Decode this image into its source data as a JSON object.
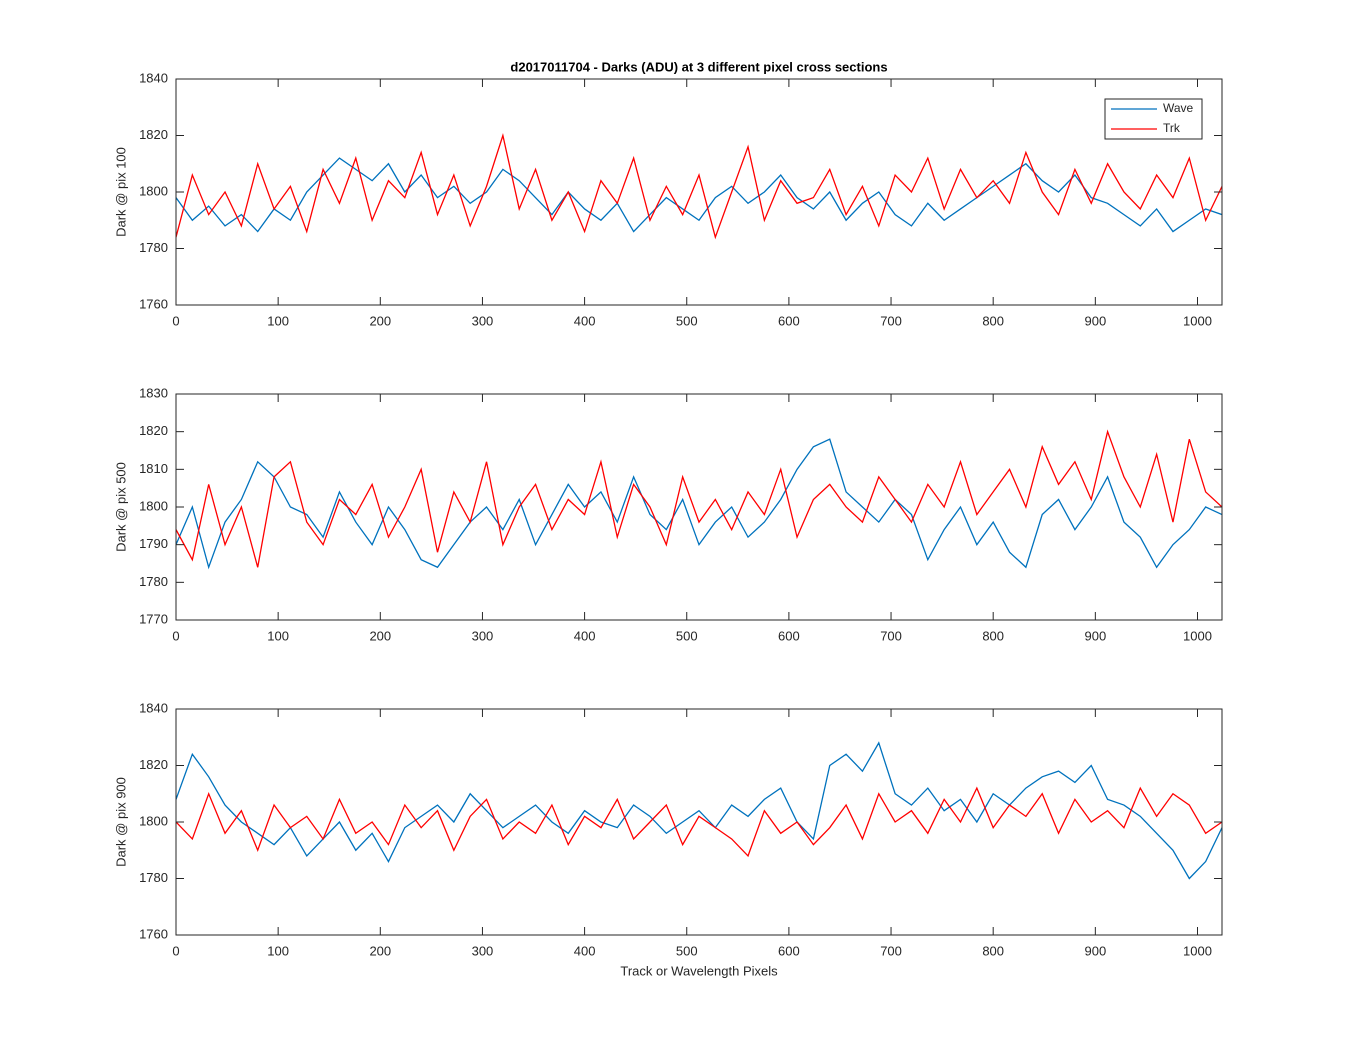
{
  "chart_data": [
    {
      "type": "line",
      "title": "d2017011704 - Darks (ADU) at 3 different pixel cross sections",
      "ylabel": "Dark @ pix 100",
      "x": [
        0,
        16,
        32,
        48,
        64,
        80,
        96,
        112,
        128,
        144,
        160,
        176,
        192,
        208,
        224,
        240,
        256,
        272,
        288,
        304,
        320,
        336,
        352,
        368,
        384,
        400,
        416,
        432,
        448,
        464,
        480,
        496,
        512,
        528,
        544,
        560,
        576,
        592,
        608,
        624,
        640,
        656,
        672,
        688,
        704,
        720,
        736,
        752,
        768,
        784,
        800,
        816,
        832,
        848,
        864,
        880,
        896,
        912,
        928,
        944,
        960,
        976,
        992,
        1008,
        1024
      ],
      "series": [
        {
          "name": "Wave",
          "color": "#0072bd",
          "values": [
            1798,
            1790,
            1795,
            1788,
            1792,
            1786,
            1794,
            1790,
            1800,
            1806,
            1812,
            1808,
            1804,
            1810,
            1800,
            1806,
            1798,
            1802,
            1796,
            1800,
            1808,
            1804,
            1798,
            1792,
            1800,
            1794,
            1790,
            1796,
            1786,
            1792,
            1798,
            1794,
            1790,
            1798,
            1802,
            1796,
            1800,
            1806,
            1798,
            1794,
            1800,
            1790,
            1796,
            1800,
            1792,
            1788,
            1796,
            1790,
            1794,
            1798,
            1802,
            1806,
            1810,
            1804,
            1800,
            1806,
            1798,
            1796,
            1792,
            1788,
            1794,
            1786,
            1790,
            1794,
            1792
          ]
        },
        {
          "name": "Trk",
          "color": "#ff0000",
          "values": [
            1784,
            1806,
            1792,
            1800,
            1788,
            1810,
            1794,
            1802,
            1786,
            1808,
            1796,
            1812,
            1790,
            1804,
            1798,
            1814,
            1792,
            1806,
            1788,
            1802,
            1820,
            1794,
            1808,
            1790,
            1800,
            1786,
            1804,
            1796,
            1812,
            1790,
            1802,
            1792,
            1806,
            1784,
            1800,
            1816,
            1790,
            1804,
            1796,
            1798,
            1808,
            1792,
            1802,
            1788,
            1806,
            1800,
            1812,
            1794,
            1808,
            1798,
            1804,
            1796,
            1814,
            1800,
            1792,
            1808,
            1796,
            1810,
            1800,
            1794,
            1806,
            1798,
            1812,
            1790,
            1802
          ]
        }
      ],
      "xlim": [
        0,
        1024
      ],
      "ylim": [
        1760,
        1840
      ],
      "xticks": [
        0,
        100,
        200,
        300,
        400,
        500,
        600,
        700,
        800,
        900,
        1000
      ],
      "yticks": [
        1760,
        1780,
        1800,
        1820,
        1840
      ],
      "legend": "northeast"
    },
    {
      "type": "line",
      "ylabel": "Dark @ pix 500",
      "x": [
        0,
        16,
        32,
        48,
        64,
        80,
        96,
        112,
        128,
        144,
        160,
        176,
        192,
        208,
        224,
        240,
        256,
        272,
        288,
        304,
        320,
        336,
        352,
        368,
        384,
        400,
        416,
        432,
        448,
        464,
        480,
        496,
        512,
        528,
        544,
        560,
        576,
        592,
        608,
        624,
        640,
        656,
        672,
        688,
        704,
        720,
        736,
        752,
        768,
        784,
        800,
        816,
        832,
        848,
        864,
        880,
        896,
        912,
        928,
        944,
        960,
        976,
        992,
        1008,
        1024
      ],
      "series": [
        {
          "name": "Wave",
          "color": "#0072bd",
          "values": [
            1790,
            1800,
            1784,
            1796,
            1802,
            1812,
            1808,
            1800,
            1798,
            1792,
            1804,
            1796,
            1790,
            1800,
            1794,
            1786,
            1784,
            1790,
            1796,
            1800,
            1794,
            1802,
            1790,
            1798,
            1806,
            1800,
            1804,
            1796,
            1808,
            1798,
            1794,
            1802,
            1790,
            1796,
            1800,
            1792,
            1796,
            1802,
            1810,
            1816,
            1818,
            1804,
            1800,
            1796,
            1802,
            1798,
            1786,
            1794,
            1800,
            1790,
            1796,
            1788,
            1784,
            1798,
            1802,
            1794,
            1800,
            1808,
            1796,
            1792,
            1784,
            1790,
            1794,
            1800,
            1798
          ]
        },
        {
          "name": "Trk",
          "color": "#ff0000",
          "values": [
            1794,
            1786,
            1806,
            1790,
            1800,
            1784,
            1808,
            1812,
            1796,
            1790,
            1802,
            1798,
            1806,
            1792,
            1800,
            1810,
            1788,
            1804,
            1796,
            1812,
            1790,
            1800,
            1806,
            1794,
            1802,
            1798,
            1812,
            1792,
            1806,
            1800,
            1790,
            1808,
            1796,
            1802,
            1794,
            1804,
            1798,
            1810,
            1792,
            1802,
            1806,
            1800,
            1796,
            1808,
            1802,
            1796,
            1806,
            1800,
            1812,
            1798,
            1804,
            1810,
            1800,
            1816,
            1806,
            1812,
            1802,
            1820,
            1808,
            1800,
            1814,
            1796,
            1818,
            1804,
            1800
          ]
        }
      ],
      "xlim": [
        0,
        1024
      ],
      "ylim": [
        1770,
        1830
      ],
      "xticks": [
        0,
        100,
        200,
        300,
        400,
        500,
        600,
        700,
        800,
        900,
        1000
      ],
      "yticks": [
        1770,
        1780,
        1790,
        1800,
        1810,
        1820,
        1830
      ]
    },
    {
      "type": "line",
      "ylabel": "Dark @ pix 900",
      "xlabel": "Track or Wavelength Pixels",
      "x": [
        0,
        16,
        32,
        48,
        64,
        80,
        96,
        112,
        128,
        144,
        160,
        176,
        192,
        208,
        224,
        240,
        256,
        272,
        288,
        304,
        320,
        336,
        352,
        368,
        384,
        400,
        416,
        432,
        448,
        464,
        480,
        496,
        512,
        528,
        544,
        560,
        576,
        592,
        608,
        624,
        640,
        656,
        672,
        688,
        704,
        720,
        736,
        752,
        768,
        784,
        800,
        816,
        832,
        848,
        864,
        880,
        896,
        912,
        928,
        944,
        960,
        976,
        992,
        1008,
        1024
      ],
      "series": [
        {
          "name": "Wave",
          "color": "#0072bd",
          "values": [
            1808,
            1824,
            1816,
            1806,
            1800,
            1796,
            1792,
            1798,
            1788,
            1794,
            1800,
            1790,
            1796,
            1786,
            1798,
            1802,
            1806,
            1800,
            1810,
            1804,
            1798,
            1802,
            1806,
            1800,
            1796,
            1804,
            1800,
            1798,
            1806,
            1802,
            1796,
            1800,
            1804,
            1798,
            1806,
            1802,
            1808,
            1812,
            1800,
            1794,
            1820,
            1824,
            1818,
            1828,
            1810,
            1806,
            1812,
            1804,
            1808,
            1800,
            1810,
            1806,
            1812,
            1816,
            1818,
            1814,
            1820,
            1808,
            1806,
            1802,
            1796,
            1790,
            1780,
            1786,
            1798
          ]
        },
        {
          "name": "Trk",
          "color": "#ff0000",
          "values": [
            1800,
            1794,
            1810,
            1796,
            1804,
            1790,
            1806,
            1798,
            1802,
            1794,
            1808,
            1796,
            1800,
            1792,
            1806,
            1798,
            1804,
            1790,
            1802,
            1808,
            1794,
            1800,
            1796,
            1806,
            1792,
            1802,
            1798,
            1808,
            1794,
            1800,
            1806,
            1792,
            1802,
            1798,
            1794,
            1788,
            1804,
            1796,
            1800,
            1792,
            1798,
            1806,
            1794,
            1810,
            1800,
            1804,
            1796,
            1808,
            1800,
            1812,
            1798,
            1806,
            1802,
            1810,
            1796,
            1808,
            1800,
            1804,
            1798,
            1812,
            1802,
            1810,
            1806,
            1796,
            1800
          ]
        }
      ],
      "xlim": [
        0,
        1024
      ],
      "ylim": [
        1760,
        1840
      ],
      "xticks": [
        0,
        100,
        200,
        300,
        400,
        500,
        600,
        700,
        800,
        900,
        1000
      ],
      "yticks": [
        1760,
        1780,
        1800,
        1820,
        1840
      ]
    }
  ]
}
